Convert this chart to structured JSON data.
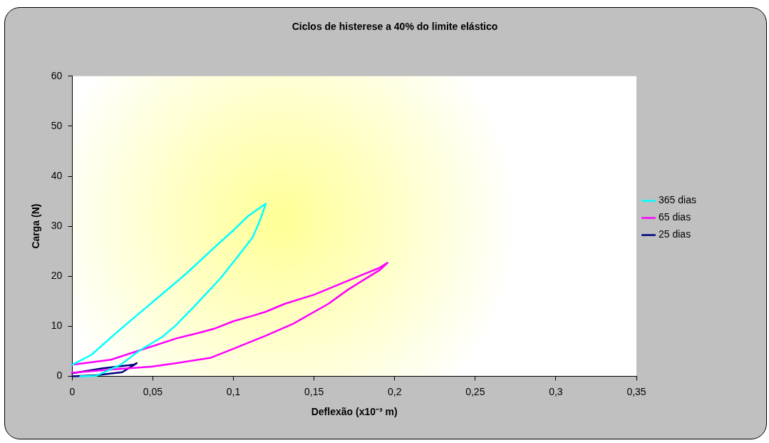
{
  "chart_data": {
    "type": "line",
    "title": "Ciclos de histerese a 40% do limite elástico",
    "xlabel": "Deflexão (x10⁻³ m)",
    "ylabel": "Carga (N)",
    "xlim": [
      0,
      0.35
    ],
    "xticks": [
      {
        "value": 0,
        "label": "0"
      },
      {
        "value": 0.05,
        "label": "0,05"
      },
      {
        "value": 0.1,
        "label": "0,1"
      },
      {
        "value": 0.15,
        "label": "0,15"
      },
      {
        "value": 0.2,
        "label": "0,2"
      },
      {
        "value": 0.25,
        "label": "0,25"
      },
      {
        "value": 0.3,
        "label": "0,3"
      },
      {
        "value": 0.35,
        "label": "0,35"
      }
    ],
    "ylim": [
      0,
      60
    ],
    "yticks": [
      0,
      10,
      20,
      30,
      40,
      50,
      60
    ],
    "grid": false,
    "legend": "right",
    "marker": "none",
    "line_style": "solid",
    "series": [
      {
        "name": "365 dias",
        "color": "#00ffff",
        "x": [
          0,
          0.012,
          0.027,
          0.042,
          0.056,
          0.071,
          0.089,
          0.1,
          0.109,
          0.12,
          0.117,
          0.112,
          0.104,
          0.092,
          0.077,
          0.064,
          0.056,
          0.042,
          0.03,
          0.015,
          0.005
        ],
        "values": [
          2.3,
          4.3,
          8.6,
          12.7,
          16.5,
          20.6,
          26,
          29.2,
          32,
          34.5,
          31.6,
          27.8,
          24.5,
          19.6,
          14.4,
          10.1,
          7.9,
          5.2,
          2.3,
          0.1,
          0
        ]
      },
      {
        "name": "65 dias",
        "color": "#ff00ff",
        "x": [
          0,
          0.027,
          0.049,
          0.064,
          0.086,
          0.1,
          0.12,
          0.137,
          0.159,
          0.171,
          0.184,
          0.191,
          0.1956,
          0.19,
          0.18,
          0.168,
          0.15,
          0.132,
          0.12,
          0.112,
          0.1,
          0.088,
          0.08,
          0.065,
          0.042,
          0.024,
          0
        ],
        "values": [
          0.7,
          1.4,
          1.9,
          2.6,
          3.7,
          5.5,
          8.1,
          10.5,
          14.5,
          17.3,
          19.9,
          21.3,
          22.7,
          21.6,
          20.3,
          18.7,
          16.3,
          14.5,
          12.9,
          12.1,
          11,
          9.5,
          8.8,
          7.6,
          5.2,
          3.3,
          2.3
        ]
      },
      {
        "name": "25 dias",
        "color": "#000080",
        "x": [
          0,
          0.019,
          0.038,
          0.04,
          0.031,
          0.015,
          0
        ],
        "values": [
          0.6,
          1.6,
          2.3,
          2.6,
          0.8,
          0.2,
          0
        ]
      }
    ]
  }
}
